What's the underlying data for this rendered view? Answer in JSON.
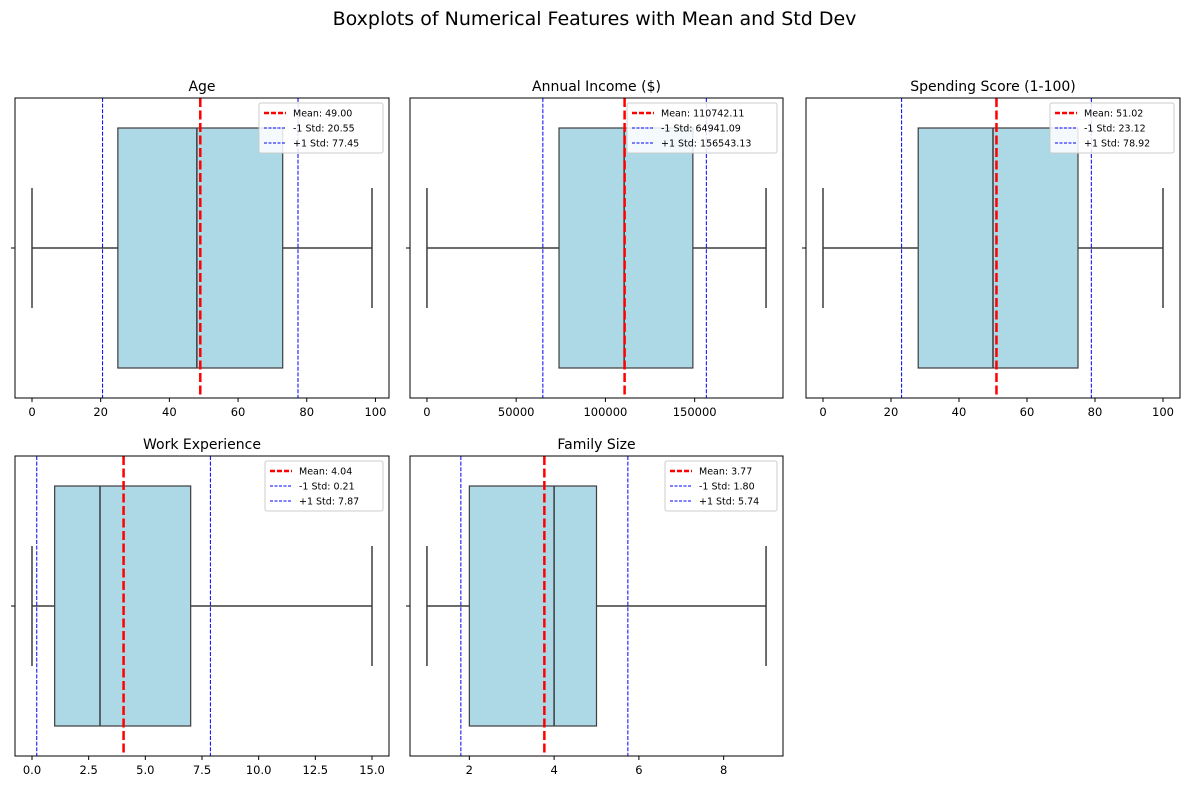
{
  "figure_title": "Boxplots of Numerical Features with Mean and Std Dev",
  "colors": {
    "box_fill": "#add8e6",
    "box_edge": "#3d3d3d",
    "mean_line": "#ff0000",
    "std_line": "#0000ff"
  },
  "legend_labels": {
    "mean_prefix": "Mean: ",
    "minus_std_prefix": "-1 Std: ",
    "plus_std_prefix": "+1 Std: "
  },
  "chart_data": [
    {
      "type": "boxplot",
      "title": "Age",
      "xlim": [
        -4.95,
        103.95
      ],
      "ticks": [
        0,
        20,
        40,
        60,
        80,
        100
      ],
      "tick_labels": [
        "0",
        "20",
        "40",
        "60",
        "80",
        "100"
      ],
      "whisker_low": 0,
      "q1": 25,
      "median": 48,
      "q3": 73,
      "whisker_high": 99,
      "mean": 49.0,
      "minus_std": 20.55,
      "plus_std": 77.45,
      "mean_label": "49.00",
      "minus_std_label": "20.55",
      "plus_std_label": "77.45",
      "legend": "upper right"
    },
    {
      "type": "boxplot",
      "title": "Annual Income ($)",
      "xlim": [
        -9500,
        199500
      ],
      "ticks": [
        0,
        50000,
        100000,
        150000
      ],
      "tick_labels": [
        "0",
        "50000",
        "100000",
        "150000"
      ],
      "whisker_low": 0,
      "q1": 74000,
      "median": 110500,
      "q3": 149000,
      "whisker_high": 190000,
      "mean": 110742.11,
      "minus_std": 64941.09,
      "plus_std": 156543.13,
      "mean_label": "110742.11",
      "minus_std_label": "64941.09",
      "plus_std_label": "156543.13",
      "legend": "upper right"
    },
    {
      "type": "boxplot",
      "title": "Spending Score (1-100)",
      "xlim": [
        -5,
        105
      ],
      "ticks": [
        0,
        20,
        40,
        60,
        80,
        100
      ],
      "tick_labels": [
        "0",
        "20",
        "40",
        "60",
        "80",
        "100"
      ],
      "whisker_low": 0,
      "q1": 28,
      "median": 50,
      "q3": 75,
      "whisker_high": 100,
      "mean": 51.02,
      "minus_std": 23.12,
      "plus_std": 78.92,
      "mean_label": "51.02",
      "minus_std_label": "23.12",
      "plus_std_label": "78.92",
      "legend": "upper right"
    },
    {
      "type": "boxplot",
      "title": "Work Experience",
      "xlim": [
        -0.75,
        15.75
      ],
      "ticks": [
        0,
        2.5,
        5,
        7.5,
        10,
        12.5,
        15
      ],
      "tick_labels": [
        "0.0",
        "2.5",
        "5.0",
        "7.5",
        "10.0",
        "12.5",
        "15.0"
      ],
      "whisker_low": 0,
      "q1": 1,
      "median": 3,
      "q3": 7,
      "whisker_high": 15,
      "mean": 4.04,
      "minus_std": 0.21,
      "plus_std": 7.87,
      "mean_label": "4.04",
      "minus_std_label": "0.21",
      "plus_std_label": "7.87",
      "legend": "upper right"
    },
    {
      "type": "boxplot",
      "title": "Family Size",
      "xlim": [
        0.6,
        9.4
      ],
      "ticks": [
        2,
        4,
        6,
        8
      ],
      "tick_labels": [
        "2",
        "4",
        "6",
        "8"
      ],
      "whisker_low": 1,
      "q1": 2,
      "median": 4,
      "q3": 5,
      "whisker_high": 9,
      "mean": 3.77,
      "minus_std": 1.8,
      "plus_std": 5.74,
      "mean_label": "3.77",
      "minus_std_label": "1.80",
      "plus_std_label": "5.74",
      "legend": "upper right"
    }
  ]
}
